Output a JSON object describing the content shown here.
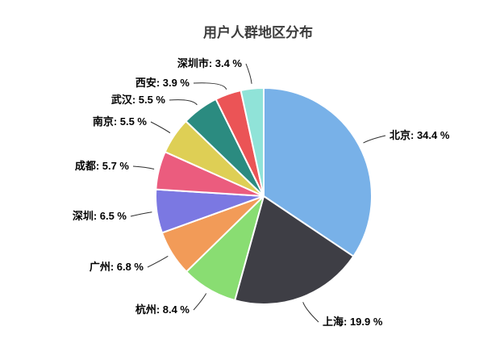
{
  "page": {
    "background_color": "#ffffff"
  },
  "chart_data": {
    "type": "pie",
    "title": "用户人群地区分布",
    "unit": "%",
    "direction": "clockwise",
    "start_angle_deg": 0,
    "label_format": "{name}: {value} %",
    "label_line_color": "#2f2f2f",
    "slice_border_color": "#ffffff",
    "series": [
      {
        "name": "北京",
        "value": 34.4,
        "color": "#78b1e8"
      },
      {
        "name": "上海",
        "value": 19.9,
        "color": "#3e3e45"
      },
      {
        "name": "杭州",
        "value": 8.4,
        "color": "#89dd72"
      },
      {
        "name": "广州",
        "value": 6.8,
        "color": "#f29b58"
      },
      {
        "name": "深圳",
        "value": 6.5,
        "color": "#7b78e2"
      },
      {
        "name": "成都",
        "value": 5.7,
        "color": "#eb5c7e"
      },
      {
        "name": "南京",
        "value": 5.5,
        "color": "#decf55"
      },
      {
        "name": "武汉",
        "value": 5.5,
        "color": "#2b8b80"
      },
      {
        "name": "西安",
        "value": 3.9,
        "color": "#eb5456"
      },
      {
        "name": "深圳市",
        "value": 3.4,
        "color": "#90e3d8"
      }
    ]
  }
}
